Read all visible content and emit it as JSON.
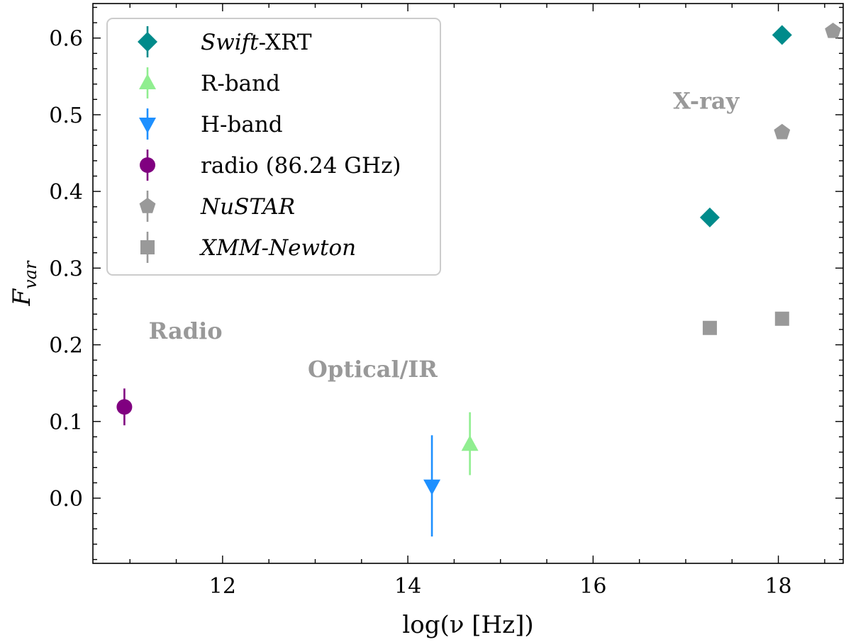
{
  "chart_data": {
    "type": "scatter",
    "xlabel": "log(ν [Hz])",
    "ylabel": "F_var",
    "xlim": [
      10.6,
      18.7
    ],
    "ylim": [
      -0.085,
      0.645
    ],
    "x_ticks": [
      12,
      14,
      16,
      18
    ],
    "x_tick_labels": [
      "12",
      "14",
      "16",
      "18"
    ],
    "y_ticks": [
      0.0,
      0.1,
      0.2,
      0.3,
      0.4,
      0.5,
      0.6
    ],
    "y_tick_labels": [
      "0.0",
      "0.1",
      "0.2",
      "0.3",
      "0.4",
      "0.5",
      "0.6"
    ],
    "grid": false,
    "legend_position": "top-left",
    "series": [
      {
        "name_prefix": "Swift",
        "name_suffix": "-XRT",
        "marker": "diamond",
        "color": "#008b8b",
        "points": [
          {
            "x": 17.26,
            "y": 0.366
          },
          {
            "x": 18.04,
            "y": 0.604
          }
        ]
      },
      {
        "name": "R-band",
        "marker": "triangle-up",
        "color": "#90ee90",
        "points": [
          {
            "x": 14.67,
            "y": 0.07,
            "yerr_low": 0.04,
            "yerr_high": 0.042
          }
        ]
      },
      {
        "name": "H-band",
        "marker": "triangle-down",
        "color": "#1e90ff",
        "points": [
          {
            "x": 14.26,
            "y": 0.016,
            "yerr_low": 0.066,
            "yerr_high": 0.066
          }
        ]
      },
      {
        "name": "radio (86.24 GHz)",
        "marker": "circle",
        "color": "#800080",
        "points": [
          {
            "x": 10.94,
            "y": 0.119,
            "yerr_low": 0.024,
            "yerr_high": 0.024
          }
        ]
      },
      {
        "name": "NuSTAR",
        "italic": true,
        "marker": "pentagon",
        "color": "#999999",
        "points": [
          {
            "x": 18.04,
            "y": 0.477
          },
          {
            "x": 18.59,
            "y": 0.609
          }
        ]
      },
      {
        "name": "XMM-Newton",
        "italic": true,
        "marker": "square",
        "color": "#999999",
        "points": [
          {
            "x": 17.26,
            "y": 0.222
          },
          {
            "x": 18.04,
            "y": 0.234
          }
        ]
      }
    ],
    "annotations": [
      {
        "text": "Radio",
        "x": 11.6,
        "y": 0.208
      },
      {
        "text": "Optical/IR",
        "x": 13.62,
        "y": 0.158
      },
      {
        "text": "X-ray",
        "x": 17.22,
        "y": 0.508
      }
    ]
  }
}
